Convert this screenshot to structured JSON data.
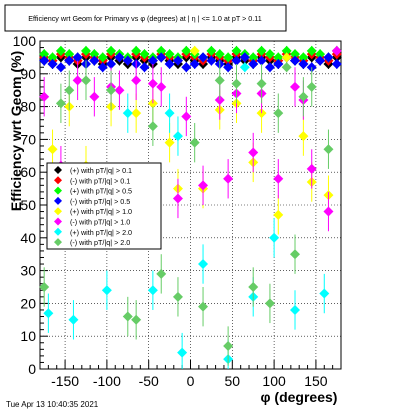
{
  "chart_data": {
    "type": "scatter",
    "title": "Efficiency wrt Geom for Primary vs φ (degrees) at | η | <= 1.0 at pT > 0.11",
    "xlabel": "φ (degrees)",
    "ylabel": "Efficiency wrt Geom (%)",
    "xlim": [
      -180,
      180
    ],
    "ylim": [
      0,
      100
    ],
    "x_ticks": [
      -150,
      -100,
      -50,
      0,
      50,
      100,
      150
    ],
    "y_ticks": [
      0,
      10,
      20,
      30,
      40,
      50,
      60,
      70,
      80,
      90,
      100
    ],
    "grid": true,
    "legend_position": "lower-left",
    "series": [
      {
        "name": "(+) with pT/|q| > 0.1",
        "color": "#000000",
        "marker": "diamond",
        "x": [
          -175,
          -165,
          -155,
          -145,
          -135,
          -125,
          -115,
          -105,
          -95,
          -85,
          -75,
          -65,
          -55,
          -45,
          -35,
          -25,
          -15,
          -5,
          5,
          15,
          25,
          35,
          45,
          55,
          65,
          75,
          85,
          95,
          105,
          115,
          125,
          135,
          145,
          155,
          165,
          175
        ],
        "y": [
          94,
          93,
          95,
          94,
          93,
          95,
          94,
          93,
          95,
          94,
          93,
          95,
          94,
          93,
          95,
          94,
          93,
          95,
          94,
          93,
          95,
          94,
          93,
          95,
          94,
          93,
          95,
          94,
          93,
          95,
          94,
          93,
          95,
          94,
          93,
          95
        ]
      },
      {
        "name": "(-) with pT/|q| > 0.1",
        "color": "#ff0000",
        "marker": "diamond",
        "x": [
          -175,
          -165,
          -155,
          -145,
          -135,
          -125,
          -115,
          -105,
          -95,
          -85,
          -75,
          -65,
          -55,
          -45,
          -35,
          -25,
          -15,
          -5,
          5,
          15,
          25,
          35,
          45,
          55,
          65,
          75,
          85,
          95,
          105,
          115,
          125,
          135,
          145,
          155,
          165,
          175
        ],
        "y": [
          95,
          94,
          96,
          95,
          94,
          96,
          95,
          94,
          96,
          95,
          94,
          96,
          95,
          94,
          96,
          95,
          94,
          96,
          95,
          94,
          96,
          95,
          94,
          96,
          95,
          94,
          96,
          95,
          94,
          96,
          95,
          94,
          96,
          95,
          94,
          96
        ]
      },
      {
        "name": "(+) with pT/|q| > 0.5",
        "color": "#00ff00",
        "marker": "diamond",
        "x": [
          -175,
          -165,
          -155,
          -145,
          -135,
          -125,
          -115,
          -105,
          -95,
          -85,
          -75,
          -65,
          -55,
          -45,
          -35,
          -25,
          -15,
          -5,
          5,
          15,
          25,
          35,
          45,
          55,
          65,
          75,
          85,
          95,
          105,
          115,
          125,
          135,
          145,
          155,
          165,
          175
        ],
        "y": [
          96,
          95,
          97,
          96,
          95,
          97,
          96,
          95,
          97,
          96,
          95,
          97,
          96,
          95,
          97,
          96,
          95,
          97,
          96,
          95,
          97,
          96,
          95,
          97,
          96,
          95,
          97,
          96,
          95,
          97,
          96,
          95,
          97,
          96,
          95,
          97
        ]
      },
      {
        "name": "(-) with pT/|q| > 0.5",
        "color": "#0000ff",
        "marker": "diamond",
        "x": [
          -175,
          -165,
          -155,
          -145,
          -135,
          -125,
          -115,
          -105,
          -95,
          -85,
          -75,
          -65,
          -55,
          -45,
          -35,
          -25,
          -15,
          -5,
          5,
          15,
          25,
          35,
          45,
          55,
          65,
          75,
          85,
          95,
          105,
          115,
          125,
          135,
          145,
          155,
          165,
          175
        ],
        "y": [
          94,
          93,
          92,
          94,
          95,
          93,
          94,
          92,
          93,
          95,
          94,
          93,
          92,
          94,
          95,
          93,
          94,
          92,
          93,
          95,
          94,
          93,
          92,
          94,
          95,
          93,
          94,
          92,
          93,
          95,
          94,
          93,
          92,
          94,
          95,
          93
        ]
      },
      {
        "name": "(+) with pT/|q| > 1.0",
        "color": "#ffff00",
        "marker": "diamond",
        "x": [
          -165,
          -145,
          -125,
          -95,
          -65,
          -45,
          -25,
          -15,
          5,
          15,
          35,
          55,
          75,
          85,
          105,
          115,
          135,
          145,
          165
        ],
        "y": [
          67,
          80,
          62,
          80,
          78,
          81,
          69,
          55,
          97,
          55,
          79,
          81,
          63,
          78,
          47,
          95,
          71,
          57,
          53
        ]
      },
      {
        "name": "(-) with pT/|q| > 1.0",
        "color": "#ff00ff",
        "marker": "diamond",
        "x": [
          -175,
          -155,
          -135,
          -115,
          -95,
          -85,
          -65,
          -45,
          -35,
          -15,
          -5,
          15,
          35,
          45,
          55,
          75,
          85,
          105,
          125,
          135,
          145,
          165,
          175
        ],
        "y": [
          83,
          62,
          88,
          83,
          86,
          85,
          88,
          87,
          86,
          52,
          77,
          56,
          82,
          58,
          84,
          66,
          84,
          58,
          86,
          82,
          61,
          48,
          97
        ]
      },
      {
        "name": "(+) with pT/|q| > 2.0",
        "color": "#00ffff",
        "marker": "diamond",
        "x": [
          -170,
          -140,
          -100,
          -75,
          -45,
          -25,
          -15,
          -10,
          15,
          45,
          65,
          75,
          100,
          125,
          160
        ],
        "y": [
          17,
          15,
          24,
          78,
          24,
          78,
          71,
          5,
          32,
          3,
          92,
          22,
          40,
          18,
          23
        ]
      },
      {
        "name": "(-) with pT/|q| > 2.0",
        "color": "#66cc66",
        "marker": "diamond",
        "x": [
          -175,
          -155,
          -145,
          -125,
          -95,
          -75,
          -65,
          -45,
          -35,
          -15,
          5,
          15,
          35,
          45,
          55,
          75,
          85,
          95,
          105,
          115,
          125,
          135,
          145,
          165
        ],
        "y": [
          25,
          81,
          85,
          88,
          85,
          16,
          15,
          74,
          29,
          22,
          69,
          19,
          88,
          7,
          87,
          25,
          87,
          20,
          78,
          92,
          35,
          83,
          86,
          67
        ]
      }
    ]
  },
  "timestamp": "Tue Apr 13 10:40:35 2021"
}
